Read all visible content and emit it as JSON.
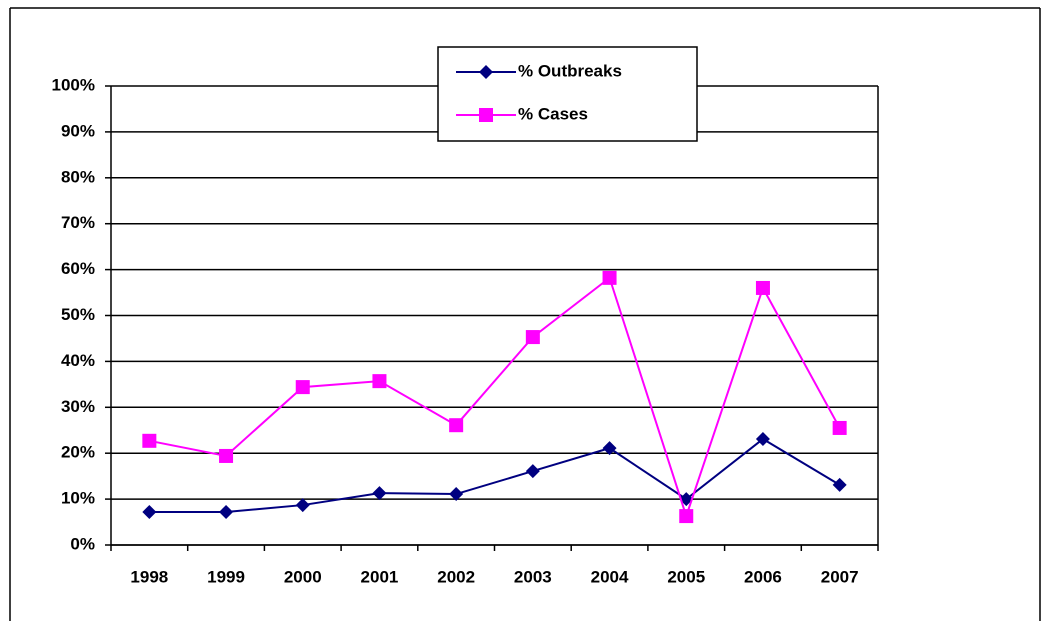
{
  "chart_data": {
    "type": "line",
    "categories": [
      "1998",
      "1999",
      "2000",
      "2001",
      "2002",
      "2003",
      "2004",
      "2005",
      "2006",
      "2007"
    ],
    "series": [
      {
        "name": "% Outbreaks",
        "color": "#000080",
        "marker": "diamond",
        "values": [
          7.2,
          7.2,
          8.7,
          11.3,
          11.1,
          16.1,
          21.1,
          10.0,
          23.1,
          13.1
        ]
      },
      {
        "name": "% Cases",
        "color": "#ff00ff",
        "marker": "square",
        "values": [
          22.7,
          19.4,
          34.4,
          35.7,
          26.1,
          45.3,
          58.2,
          6.3,
          56.0,
          25.5
        ]
      }
    ],
    "ylim": [
      0,
      100
    ],
    "yticks": [
      {
        "value": 0,
        "label": "0%"
      },
      {
        "value": 10,
        "label": "10%"
      },
      {
        "value": 20,
        "label": "20%"
      },
      {
        "value": 30,
        "label": "30%"
      },
      {
        "value": 40,
        "label": "40%"
      },
      {
        "value": 50,
        "label": "50%"
      },
      {
        "value": 60,
        "label": "60%"
      },
      {
        "value": 70,
        "label": "70%"
      },
      {
        "value": 80,
        "label": "80%"
      },
      {
        "value": 90,
        "label": "90%"
      },
      {
        "value": 100,
        "label": "100%"
      }
    ],
    "grid": true,
    "legend": "top"
  }
}
